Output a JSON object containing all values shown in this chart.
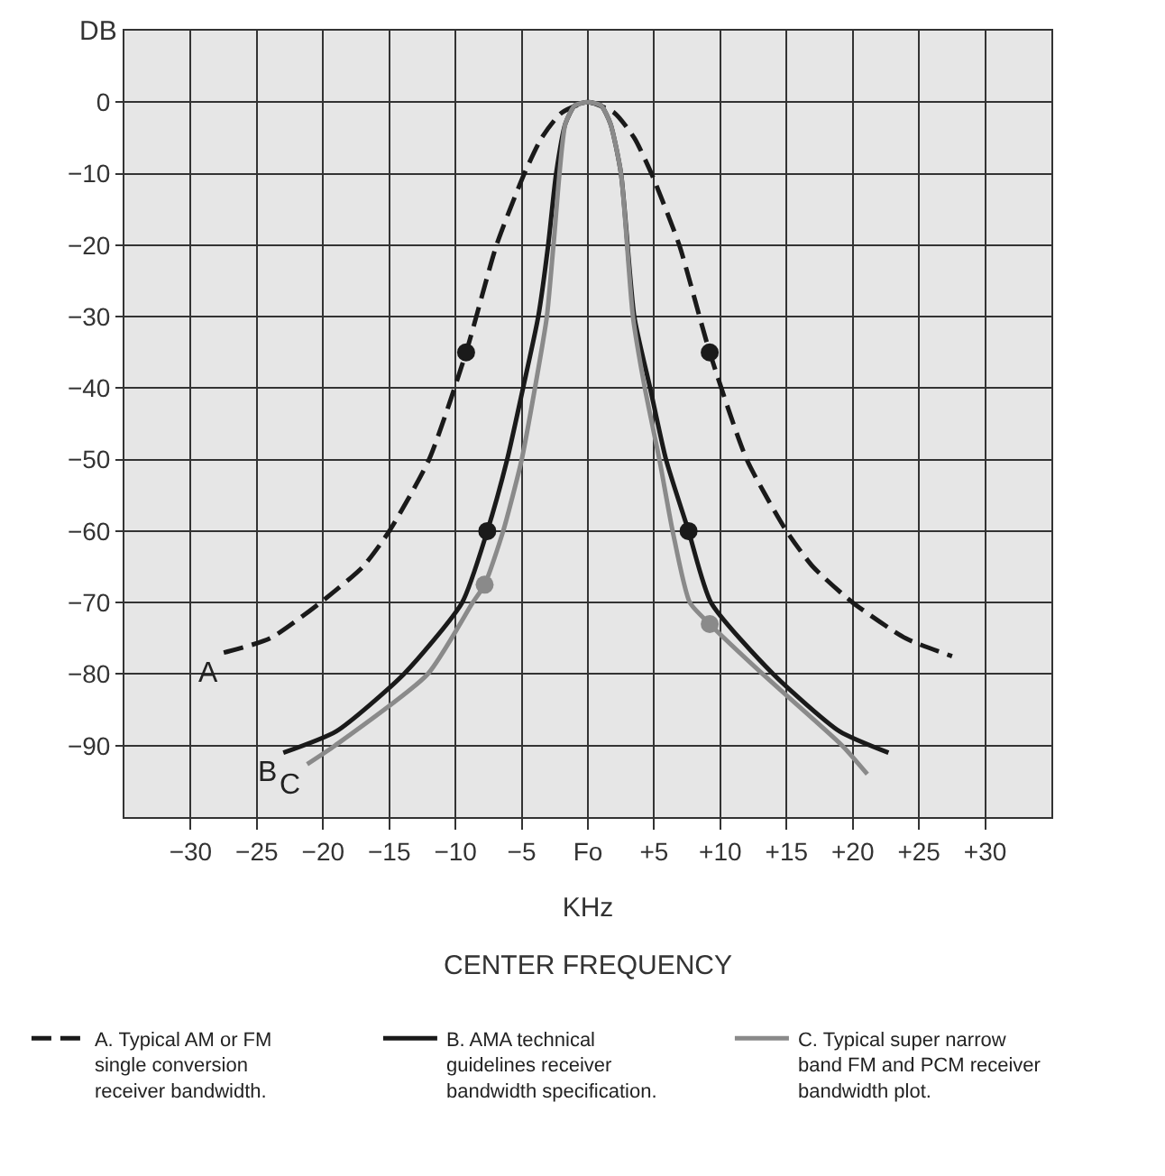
{
  "chart_data": {
    "type": "line",
    "ylabel": "DB",
    "xlabel": "KHz",
    "xlim": [
      -35,
      35
    ],
    "ylim": [
      -100,
      10
    ],
    "xticks": [
      {
        "value": -30,
        "label": "−30"
      },
      {
        "value": -25,
        "label": "−25"
      },
      {
        "value": -20,
        "label": "−20"
      },
      {
        "value": -15,
        "label": "−15"
      },
      {
        "value": -10,
        "label": "−10"
      },
      {
        "value": -5,
        "label": "−5"
      },
      {
        "value": 0,
        "label": "Fo"
      },
      {
        "value": 5,
        "label": "+5"
      },
      {
        "value": 10,
        "label": "+10"
      },
      {
        "value": 15,
        "label": "+15"
      },
      {
        "value": 20,
        "label": "+20"
      },
      {
        "value": 25,
        "label": "+25"
      },
      {
        "value": 30,
        "label": "+30"
      }
    ],
    "yticks": [
      0,
      {
        "value": -10,
        "label": "−10"
      },
      {
        "value": -20,
        "label": "−20"
      },
      {
        "value": -30,
        "label": "−30"
      },
      {
        "value": -40,
        "label": "−40"
      },
      {
        "value": -50,
        "label": "−50"
      },
      {
        "value": -60,
        "label": "−60"
      },
      {
        "value": -70,
        "label": "−70"
      },
      {
        "value": -80,
        "label": "−80"
      },
      {
        "value": -90,
        "label": "−90"
      }
    ],
    "grid": true,
    "legend": "bottom",
    "marker": "none",
    "series": [
      {
        "name": "A. Typical AM or FM single conversion receiver bandwidth.",
        "color": "#1a1a1a",
        "line_style": "dashed",
        "x": [
          -27.5,
          -24,
          -20.2,
          -17,
          -15,
          -12,
          -9.2,
          -6.9,
          -4.8,
          -3.5,
          -2,
          0,
          2,
          3.5,
          4.8,
          6.9,
          9.2,
          12,
          15,
          17,
          20,
          24,
          27.5
        ],
        "values": [
          -77,
          -75,
          -70,
          -65,
          -60,
          -50,
          -35,
          -20,
          -10,
          -5,
          -1.5,
          0,
          -1.5,
          -5,
          -10,
          -20,
          -35,
          -50,
          -60,
          -65,
          -70,
          -75,
          -77.5
        ]
      },
      {
        "name": "B. AMA technical guidelines receiver bandwidth specification.",
        "color": "#1a1a1a",
        "line_style": "solid",
        "x": [
          -23,
          -19,
          -13.9,
          -9.5,
          -7.6,
          -6.1,
          -4.9,
          -3.75,
          -3,
          -2.4,
          -1.7,
          -1,
          0,
          1,
          1.7,
          2.5,
          3.5,
          4.7,
          5.9,
          7.6,
          9.3,
          14,
          19,
          22.7
        ],
        "values": [
          -91,
          -88,
          -80,
          -70,
          -60,
          -50,
          -40,
          -30,
          -20,
          -10,
          -3,
          -0.5,
          0,
          -0.5,
          -3,
          -10,
          -30,
          -40,
          -50,
          -60,
          -70,
          -80,
          -88,
          -91
        ]
      },
      {
        "name": "C. Typical super narrow band FM and PCM receiver bandwidth plot.",
        "color": "#8a8a8a",
        "line_style": "solid",
        "x": [
          -21.2,
          -19.1,
          -12.1,
          -8.7,
          -7.8,
          -6.4,
          -5,
          -4,
          -3.1,
          -2.6,
          -1.7,
          -1,
          0,
          1,
          1.7,
          2.5,
          3.4,
          4.3,
          5.4,
          6.4,
          7.7,
          9.2,
          13.2,
          19.2,
          21.1
        ],
        "values": [
          -92.6,
          -90,
          -80,
          -70,
          -67.5,
          -60,
          -50,
          -40,
          -30,
          -20,
          -3,
          -0.5,
          0,
          -0.5,
          -3,
          -10,
          -30,
          -40,
          -50,
          -60,
          -70,
          -73,
          -80,
          -90,
          -94
        ]
      },
      {
        "type": "scatter",
        "marker": "circle",
        "color": "#1a1a1a",
        "x": [
          -9.2,
          9.2,
          -7.6,
          7.6
        ],
        "values": [
          -35,
          -35,
          -60,
          -60
        ]
      },
      {
        "type": "scatter",
        "marker": "circle",
        "color": "#8a8a8a",
        "x": [
          -7.8,
          9.2
        ],
        "values": [
          -67.5,
          -73
        ]
      }
    ],
    "annotations": [
      {
        "text": "A",
        "x": -27.5,
        "y": -77
      },
      {
        "text": "B",
        "x": -23,
        "y": -91
      },
      {
        "text": "C",
        "x": -21.2,
        "y": -92.6
      },
      "CENTER FREQUENCY"
    ]
  }
}
